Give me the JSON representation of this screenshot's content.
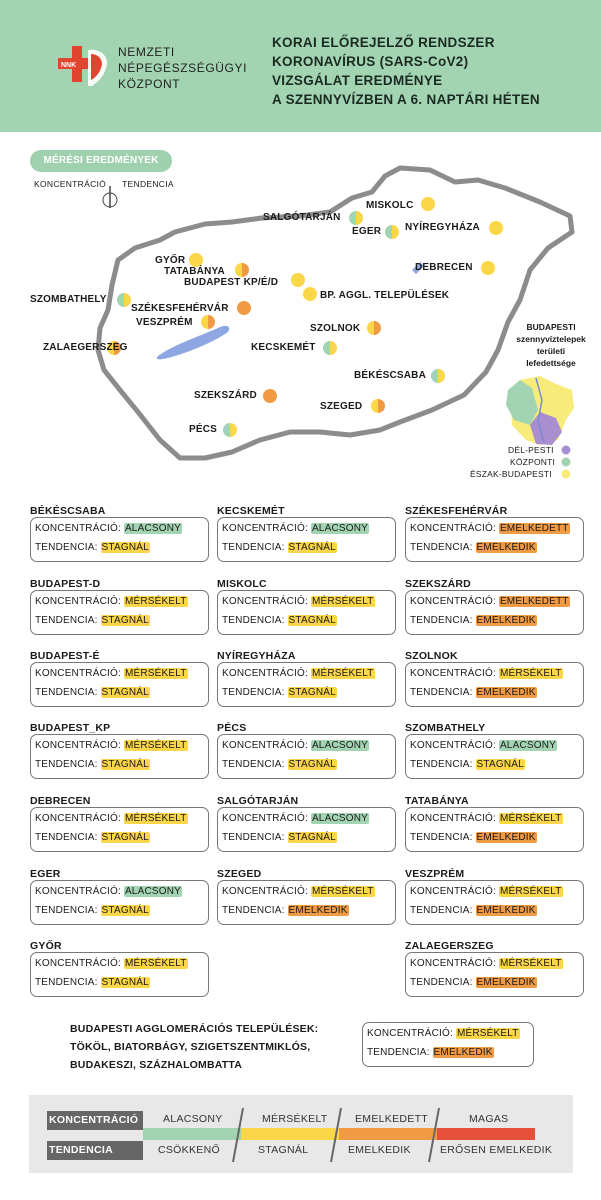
{
  "header": {
    "org_lines": [
      "NEMZETI",
      "NÉPEGÉSZSÉGÜGYI",
      "KÖZPONT"
    ],
    "logo_text": "NNK",
    "title_lines": [
      "KORAI ELŐREJELZŐ RENDSZER",
      "KORONAVÍRUS (SARS-CoV2)",
      "VIZSGÁLAT EREDMÉNYE",
      "A SZENNYVÍZBEN A 6. NAPTÁRI HÉTEN"
    ]
  },
  "map": {
    "section_label": "MÉRÉSI EREDMÉNYEK",
    "legend_concentration": "KONCENTRÁCIÓ",
    "legend_trend": "TENDENCIA",
    "cities": {
      "miskolc": "MISKOLC",
      "salgotarjan": "SALGÓTARJÁN",
      "eger": "EGER",
      "nyiregyhaza": "NYÍREGYHÁZA",
      "debrecen": "DEBRECEN",
      "gyor": "GYŐR",
      "tatabanya": "TATABÁNYA",
      "budapest": "BUDAPEST KP/É/D",
      "bp_aggl": "BP. AGGL. TELEPÜLÉSEK",
      "szombathely": "SZOMBATHELY",
      "szekesfehervar": "SZÉKESFEHÉRVÁR",
      "veszprem": "VESZPRÉM",
      "zalaegerszeg": "ZALAEGERSZEG",
      "szolnok": "SZOLNOK",
      "kecskemet": "KECSKEMÉT",
      "bekescsaba": "BÉKÉSCSABA",
      "szekszard": "SZEKSZÁRD",
      "szeged": "SZEGED",
      "pecs": "PÉCS"
    },
    "budapest_inset": {
      "title_lines": [
        "BUDAPESTI",
        "szennyvíztelepek",
        "területi",
        "lefedettsége"
      ],
      "legend": [
        "DÉL-PESTI",
        "KÖZPONTI",
        "ÉSZAK-BUDAPESTI"
      ],
      "colors": [
        "#a98fd0",
        "#a3d4b2",
        "#f7ec7a"
      ]
    }
  },
  "labels": {
    "concentration": "KONCENTRÁCIÓ:",
    "trend": "TENDENCIA:"
  },
  "stations": {
    "bekescsaba": {
      "name": "BÉKÉSCSABA",
      "c": "ALACSONY",
      "t": "STAGNÁL"
    },
    "budapest_d": {
      "name": "BUDAPEST-D",
      "c": "MÉRSÉKELT",
      "t": "STAGNÁL"
    },
    "budapest_e": {
      "name": "BUDAPEST-É",
      "c": "MÉRSÉKELT",
      "t": "STAGNÁL"
    },
    "budapest_kp": {
      "name": "BUDAPEST_KP",
      "c": "MÉRSÉKELT",
      "t": "STAGNÁL"
    },
    "debrecen": {
      "name": "DEBRECEN",
      "c": "MÉRSÉKELT",
      "t": "STAGNÁL"
    },
    "eger": {
      "name": "EGER",
      "c": "ALACSONY",
      "t": "STAGNÁL"
    },
    "gyor": {
      "name": "GYŐR",
      "c": "MÉRSÉKELT",
      "t": "STAGNÁL"
    },
    "kecskemet": {
      "name": "KECSKEMÉT",
      "c": "ALACSONY",
      "t": "STAGNÁL"
    },
    "miskolc": {
      "name": "MISKOLC",
      "c": "MÉRSÉKELT",
      "t": "STAGNÁL"
    },
    "nyiregyhaza": {
      "name": "NYÍREGYHÁZA",
      "c": "MÉRSÉKELT",
      "t": "STAGNÁL"
    },
    "pecs": {
      "name": "PÉCS",
      "c": "ALACSONY",
      "t": "STAGNÁL"
    },
    "salgotarjan": {
      "name": "SALGÓTARJÁN",
      "c": "ALACSONY",
      "t": "STAGNÁL"
    },
    "szeged": {
      "name": "SZEGED",
      "c": "MÉRSÉKELT",
      "t": "EMELKEDIK"
    },
    "szekesfehervar": {
      "name": "SZÉKESFEHÉRVÁR",
      "c": "EMELKEDETT",
      "t": "EMELKEDIK"
    },
    "szekszard": {
      "name": "SZEKSZÁRD",
      "c": "EMELKEDETT",
      "t": "EMELKEDIK"
    },
    "szolnok": {
      "name": "SZOLNOK",
      "c": "MÉRSÉKELT",
      "t": "EMELKEDIK"
    },
    "szombathely": {
      "name": "SZOMBATHELY",
      "c": "ALACSONY",
      "t": "STAGNÁL"
    },
    "tatabanya": {
      "name": "TATABÁNYA",
      "c": "MÉRSÉKELT",
      "t": "EMELKEDIK"
    },
    "veszprem": {
      "name": "VESZPRÉM",
      "c": "MÉRSÉKELT",
      "t": "EMELKEDIK"
    },
    "zalaegerszeg": {
      "name": "ZALAEGERSZEG",
      "c": "MÉRSÉKELT",
      "t": "EMELKEDIK"
    }
  },
  "agglomeration": {
    "title_lines": [
      "BUDAPESTI AGGLOMERÁCIÓS TELEPÜLÉSEK:",
      "TÖKÖL, BIATORBÁGY, SZIGETSZENTMIKLÓS,",
      "BUDAKESZI, SZÁZHALOMBATTA"
    ],
    "c": "MÉRSÉKELT",
    "t": "EMELKEDIK"
  },
  "legend": {
    "concentration_label": "KONCENTRÁCIÓ",
    "trend_label": "TENDENCIA",
    "concentration_levels": [
      "ALACSONY",
      "MÉRSÉKELT",
      "EMELKEDETT",
      "MAGAS"
    ],
    "trend_levels": [
      "CSÖKKENŐ",
      "STAGNÁL",
      "EMELKEDIK",
      "ERŐSEN EMELKEDIK"
    ],
    "colors": [
      "#a3d4b2",
      "#fbd648",
      "#f09a44",
      "#e5503a"
    ]
  }
}
